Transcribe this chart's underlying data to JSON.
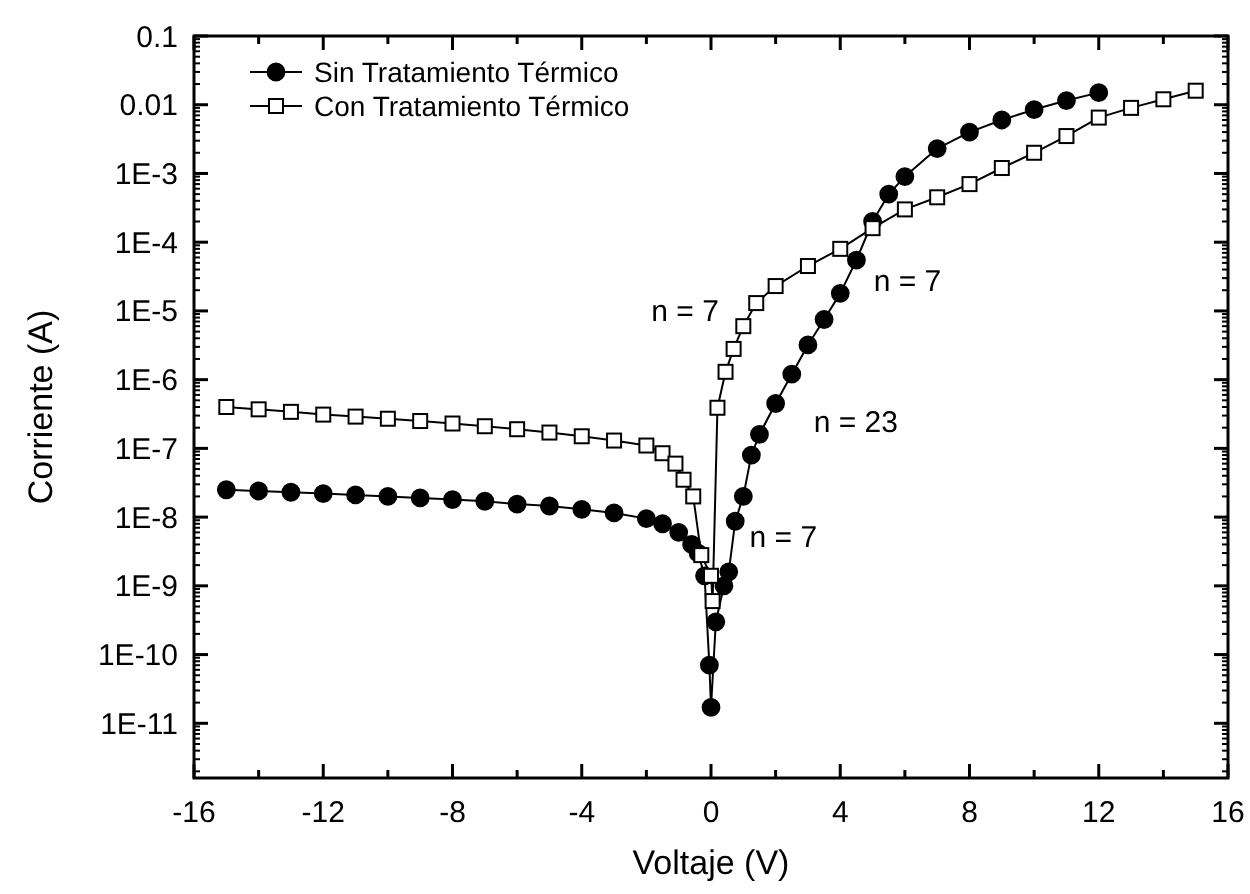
{
  "chart_data": {
    "type": "line",
    "xlabel": "Voltaje (V)",
    "ylabel": "Corriente (A)",
    "log": "y",
    "legend": "top left",
    "line_style": "solid",
    "xlim": [
      -16,
      16
    ],
    "xticks": [
      -16,
      {
        "value": -14,
        "label": null
      },
      -12,
      {
        "value": -10,
        "label": null
      },
      -8,
      {
        "value": -6,
        "label": null
      },
      -4,
      {
        "value": -2,
        "label": null
      },
      0,
      {
        "value": 2,
        "label": null
      },
      4,
      {
        "value": 6,
        "label": null
      },
      8,
      {
        "value": 10,
        "label": null
      },
      12,
      {
        "value": 14,
        "label": null
      },
      16
    ],
    "ylim": [
      1.6e-12,
      0.1
    ],
    "yticks": [
      0.1,
      0.01,
      {
        "value": 0.001,
        "label": "1E-3"
      },
      {
        "value": 0.0001,
        "label": "1E-4"
      },
      {
        "value": 1e-05,
        "label": "1E-5"
      },
      {
        "value": 1e-06,
        "label": "1E-6"
      },
      {
        "value": 1e-07,
        "label": "1E-7"
      },
      {
        "value": 1e-08,
        "label": "1E-8"
      },
      {
        "value": 1e-09,
        "label": "1E-9"
      },
      {
        "value": 1e-10,
        "label": "1E-10"
      },
      {
        "value": 1e-11,
        "label": "1E-11"
      }
    ],
    "series": [
      {
        "name": "Sin Tratamiento Térmico",
        "color": "#000000",
        "marker": "circle",
        "x": [
          -15,
          -14,
          -13,
          -12,
          -11,
          -10,
          -9,
          -8,
          -7,
          -6,
          -5,
          -4,
          -3,
          -2,
          -1.5,
          -1,
          -0.6,
          -0.4,
          -0.2,
          -0.05,
          0,
          0.15,
          0.4,
          0.55,
          0.75,
          1.0,
          1.25,
          1.5,
          2.0,
          2.5,
          3.0,
          3.5,
          4.0,
          4.5,
          5.0,
          5.5,
          6.0,
          7.0,
          8.0,
          9.0,
          10.0,
          11.0,
          12.0
        ],
        "values": [
          2.5e-08,
          2.4e-08,
          2.3e-08,
          2.2e-08,
          2.1e-08,
          2e-08,
          1.9e-08,
          1.8e-08,
          1.7e-08,
          1.55e-08,
          1.45e-08,
          1.3e-08,
          1.15e-08,
          9.5e-09,
          8e-09,
          6e-09,
          4e-09,
          3e-09,
          1.4e-09,
          7e-11,
          1.7e-11,
          3e-10,
          1e-09,
          1.6e-09,
          8.7e-09,
          2e-08,
          8e-08,
          1.6e-07,
          4.5e-07,
          1.2e-06,
          3.2e-06,
          7.5e-06,
          1.8e-05,
          5.5e-05,
          0.0002,
          0.0005,
          0.0009,
          0.0023,
          0.004,
          0.006,
          0.0085,
          0.0115,
          0.015
        ]
      },
      {
        "name": "Con Tratamiento Térmico",
        "color": "#000000",
        "marker": "square",
        "x": [
          -15,
          -14,
          -13,
          -12,
          -11,
          -10,
          -9,
          -8,
          -7,
          -6,
          -5,
          -4,
          -3,
          -2,
          -1.5,
          -1.1,
          -0.85,
          -0.55,
          -0.3,
          0,
          0.05,
          0.2,
          0.45,
          0.7,
          1.0,
          1.4,
          2.0,
          3.0,
          4.0,
          5.0,
          6.0,
          7.0,
          8.0,
          9.0,
          10.0,
          11.0,
          12.0,
          13.0,
          14.0,
          15.0
        ],
        "values": [
          4e-07,
          3.7e-07,
          3.4e-07,
          3.1e-07,
          2.9e-07,
          2.7e-07,
          2.5e-07,
          2.3e-07,
          2.1e-07,
          1.9e-07,
          1.7e-07,
          1.5e-07,
          1.3e-07,
          1.1e-07,
          8.5e-08,
          6e-08,
          3.5e-08,
          2e-08,
          2.8e-09,
          1.4e-09,
          6e-10,
          3.9e-07,
          1.3e-06,
          2.8e-06,
          6e-06,
          1.3e-05,
          2.3e-05,
          4.5e-05,
          8e-05,
          0.00016,
          0.0003,
          0.00045,
          0.0007,
          0.0012,
          0.002,
          0.0035,
          0.0065,
          0.009,
          0.012,
          0.016
        ]
      }
    ],
    "annotations": [
      "n = 7",
      "n = 7",
      "n = 23",
      "n = 7"
    ]
  }
}
